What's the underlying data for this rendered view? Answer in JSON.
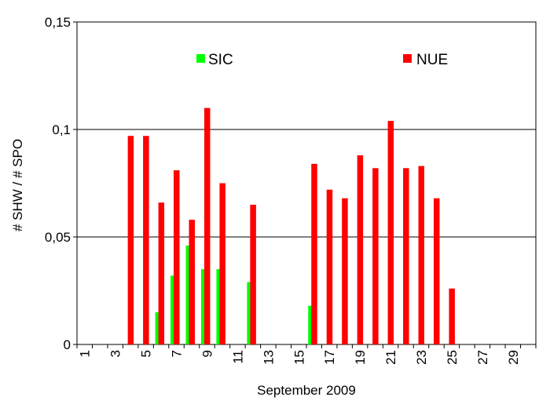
{
  "chart_data": {
    "type": "bar",
    "xlabel": "September 2009",
    "ylabel": "# SHW / # SPO",
    "ylim": [
      0,
      0.15
    ],
    "y_ticks": [
      "0",
      "0,05",
      "0,1",
      "0,15"
    ],
    "y_tick_values": [
      0,
      0.05,
      0.1,
      0.15
    ],
    "grid": "horizontal",
    "legend_placement": "top",
    "categories": [
      "1",
      "2",
      "3",
      "4",
      "5",
      "6",
      "7",
      "8",
      "9",
      "10",
      "11",
      "12",
      "13",
      "14",
      "15",
      "16",
      "17",
      "18",
      "19",
      "20",
      "21",
      "22",
      "23",
      "24",
      "25",
      "26",
      "27",
      "28",
      "29",
      "30"
    ],
    "x_tick_labels": [
      "1",
      "3",
      "5",
      "7",
      "9",
      "11",
      "13",
      "15",
      "17",
      "19",
      "21",
      "23",
      "25",
      "27",
      "29"
    ],
    "series": [
      {
        "name": "SIC",
        "color": "#00ff00",
        "values": [
          null,
          null,
          null,
          null,
          null,
          0.015,
          0.032,
          0.046,
          0.035,
          0.035,
          null,
          0.029,
          null,
          null,
          null,
          0.018,
          null,
          null,
          null,
          null,
          null,
          null,
          null,
          null,
          null,
          null,
          null,
          null,
          null,
          null
        ]
      },
      {
        "name": "NUE",
        "color": "#ff0000",
        "values": [
          null,
          null,
          null,
          0.097,
          0.097,
          0.066,
          0.081,
          0.058,
          0.11,
          0.075,
          null,
          0.065,
          null,
          null,
          null,
          0.084,
          0.072,
          0.068,
          0.088,
          0.082,
          0.104,
          0.082,
          0.083,
          0.068,
          0.026,
          null,
          null,
          null,
          null,
          null
        ]
      }
    ]
  }
}
